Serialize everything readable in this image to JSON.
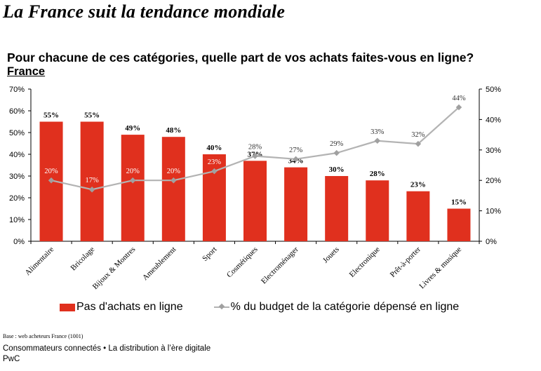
{
  "page": {
    "title": "La France suit la tendance mondiale",
    "subtitle": "Pour chacune de ces catégories, quelle part de vos achats faites-vous en ligne?",
    "sub_label": "France",
    "base_note": "Base : web acheteurs France (1001)",
    "footer_line1": "Consommateurs connectés • La distribution à l’ère digitale",
    "footer_line2": "PwC"
  },
  "chart_data": {
    "type": "bar",
    "title": "Pour chacune de ces catégories, quelle part de vos achats faites-vous en ligne?",
    "xlabel": "",
    "ylabel": "",
    "categories": [
      "Alimentaire",
      "Bricolage",
      "Bijoux & Montres",
      "Ameublement",
      "Sport",
      "Cosmétiques",
      "Electroménager",
      "Jouets",
      "Electronique",
      "Prêt-à-porter",
      "Livres & musique"
    ],
    "series": [
      {
        "name": "Pas d'achats en ligne",
        "type": "bar",
        "axis": "left",
        "color": "#e0301e",
        "values": [
          55,
          55,
          49,
          48,
          40,
          37,
          34,
          30,
          28,
          23,
          15
        ],
        "labels": [
          "55%",
          "55%",
          "49%",
          "48%",
          "40%",
          "37%",
          "34%",
          "30%",
          "28%",
          "23%",
          "15%"
        ]
      },
      {
        "name": "% du budget de la catégorie dépensé en ligne",
        "type": "line",
        "axis": "right",
        "color": "#b3b3b3",
        "values": [
          20,
          17,
          20,
          20,
          23,
          28,
          27,
          29,
          33,
          32,
          44
        ],
        "labels": [
          "20%",
          "17%",
          "20%",
          "20%",
          "23%",
          "28%",
          "27%",
          "29%",
          "33%",
          "32%",
          "44%"
        ]
      }
    ],
    "y_left": {
      "ylim": [
        0,
        70
      ],
      "ticks": [
        "0%",
        "10%",
        "20%",
        "30%",
        "40%",
        "50%",
        "60%",
        "70%"
      ]
    },
    "y_right": {
      "ylim": [
        0,
        50
      ],
      "ticks": [
        "0%",
        "10%",
        "20%",
        "30%",
        "40%",
        "50%"
      ]
    },
    "grid": false,
    "legend_position": "bottom"
  }
}
